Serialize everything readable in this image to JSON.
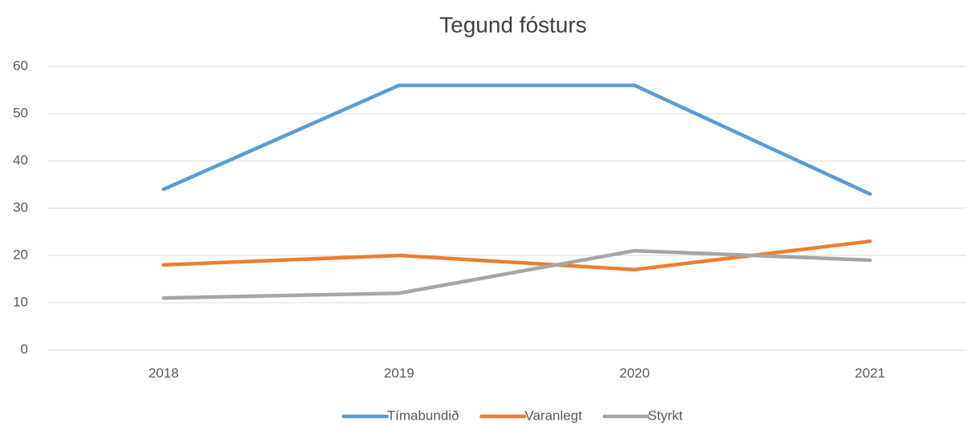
{
  "chart_data": {
    "type": "line",
    "title": "Tegund fósturs",
    "categories": [
      "2018",
      "2019",
      "2020",
      "2021"
    ],
    "series": [
      {
        "name": "Tímabundið",
        "color": "#5b9bd5",
        "values": [
          34,
          56,
          56,
          33
        ]
      },
      {
        "name": "Varanlegt",
        "color": "#ed7d31",
        "values": [
          18,
          20,
          17,
          23
        ]
      },
      {
        "name": "Styrkt",
        "color": "#a5a5a5",
        "values": [
          11,
          12,
          21,
          19
        ]
      }
    ],
    "ylim": [
      0,
      60
    ],
    "yticks": [
      0,
      10,
      20,
      30,
      40,
      50,
      60
    ],
    "grid": true,
    "legend": "bottom"
  }
}
